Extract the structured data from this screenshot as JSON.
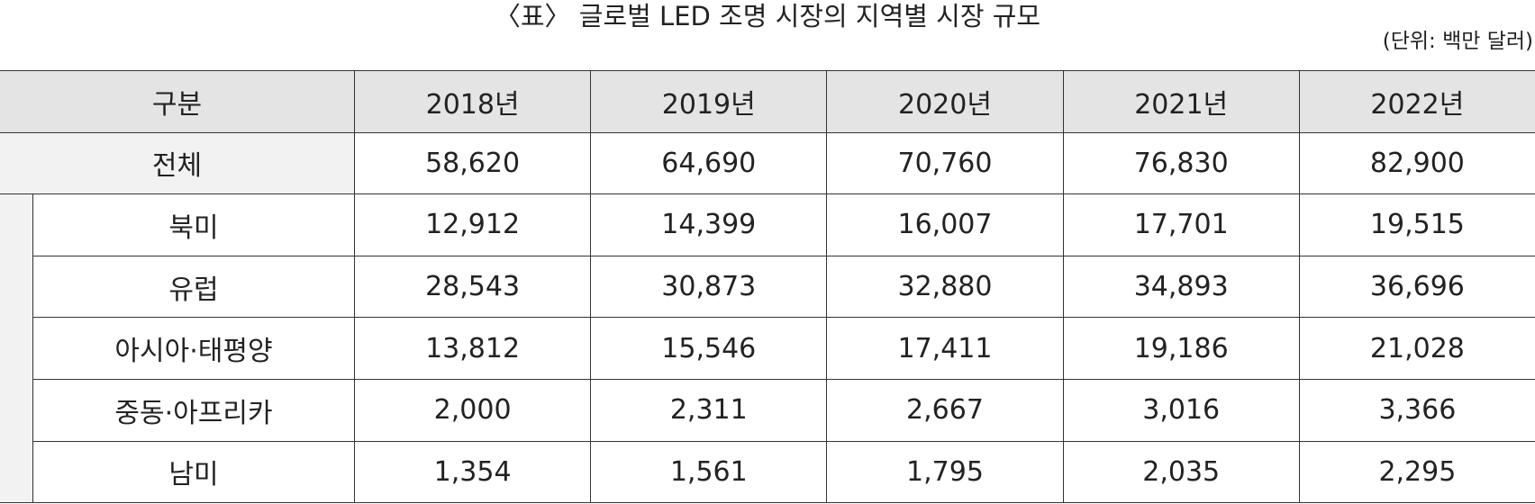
{
  "title": "〈표〉 글로벌 LED 조명 시장의 지역별 시장 규모",
  "unit": "(단위: 백만 달러)",
  "table": {
    "header": [
      "구분",
      "2018년",
      "2019년",
      "2020년",
      "2021년",
      "2022년"
    ],
    "rows": [
      [
        "전체",
        "58,620",
        "64,690",
        "70,760",
        "76,830",
        "82,900"
      ],
      [
        "북미",
        "12,912",
        "14,399",
        "16,007",
        "17,701",
        "19,515"
      ],
      [
        "유럽",
        "28,543",
        "30,873",
        "32,880",
        "34,893",
        "36,696"
      ],
      [
        "아시아·태평양",
        "13,812",
        "15,546",
        "17,411",
        "19,186",
        "21,028"
      ],
      [
        "중동·아프리카",
        "2,000",
        "2,311",
        "2,667",
        "3,016",
        "3,366"
      ],
      [
        "남미",
        "1,354",
        "1,561",
        "1,795",
        "2,035",
        "2,295"
      ]
    ]
  }
}
